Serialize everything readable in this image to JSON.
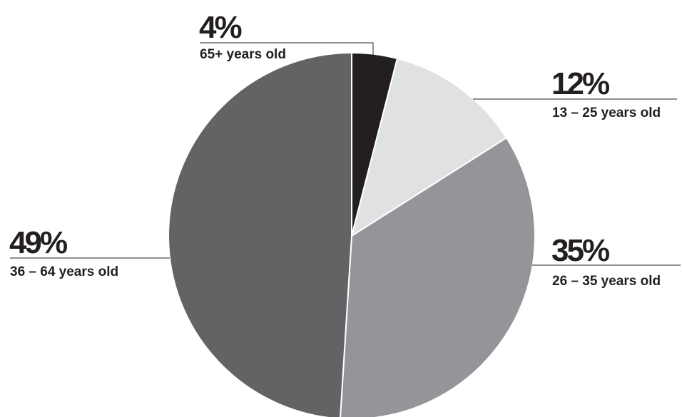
{
  "chart_data": {
    "type": "pie",
    "slices": [
      {
        "label": "65+ years old",
        "value": 4,
        "value_label": "4%",
        "color": "#231f20"
      },
      {
        "label": "13 – 25 years old",
        "value": 12,
        "value_label": "12%",
        "color": "#e0e1e3"
      },
      {
        "label": "26 – 35 years old",
        "value": 35,
        "value_label": "35%",
        "color": "#939598"
      },
      {
        "label": "36 – 64 years old",
        "value": 49,
        "value_label": "49%",
        "color": "#636365"
      }
    ]
  }
}
